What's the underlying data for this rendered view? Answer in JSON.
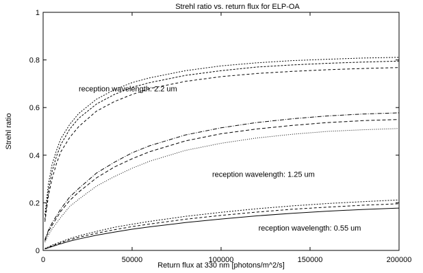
{
  "chart_data": {
    "type": "line",
    "title": "Strehl ratio vs. return flux for ELP-OA",
    "xlabel": "Return flux at 330 nm [photons/m^2/s]",
    "ylabel": "Strehl ratio",
    "xlim": [
      0,
      200000
    ],
    "ylim": [
      0,
      1
    ],
    "x_ticks": [
      "0",
      "50000",
      "100000",
      "150000",
      "200000"
    ],
    "y_ticks": [
      "0",
      "0.2",
      "0.4",
      "0.6",
      "0.8",
      "1"
    ],
    "grid": false,
    "legend": "none",
    "x": [
      1000,
      3000,
      5000,
      7500,
      10000,
      15000,
      20000,
      30000,
      40000,
      50000,
      60000,
      80000,
      100000,
      120000,
      140000,
      160000,
      180000,
      200000
    ],
    "series": [
      {
        "group": "2.2",
        "dash": "2,2",
        "values": [
          0.15,
          0.28,
          0.36,
          0.42,
          0.47,
          0.53,
          0.575,
          0.635,
          0.675,
          0.705,
          0.725,
          0.755,
          0.775,
          0.788,
          0.797,
          0.803,
          0.808,
          0.811
        ]
      },
      {
        "group": "2.2",
        "dash": "3,2",
        "values": [
          0.13,
          0.25,
          0.33,
          0.395,
          0.445,
          0.51,
          0.555,
          0.615,
          0.655,
          0.685,
          0.705,
          0.735,
          0.755,
          0.77,
          0.779,
          0.786,
          0.791,
          0.795
        ]
      },
      {
        "group": "2.2",
        "dash": "4,3",
        "values": [
          0.12,
          0.23,
          0.3,
          0.365,
          0.415,
          0.475,
          0.52,
          0.585,
          0.625,
          0.655,
          0.68,
          0.71,
          0.73,
          0.743,
          0.752,
          0.759,
          0.764,
          0.768
        ]
      },
      {
        "group": "1.25",
        "dash": "6,2,1,2",
        "values": [
          0.045,
          0.085,
          0.115,
          0.145,
          0.175,
          0.225,
          0.26,
          0.325,
          0.37,
          0.41,
          0.44,
          0.485,
          0.515,
          0.537,
          0.553,
          0.565,
          0.573,
          0.578
        ]
      },
      {
        "group": "1.25",
        "dash": "5,3",
        "values": [
          0.04,
          0.08,
          0.105,
          0.135,
          0.165,
          0.21,
          0.245,
          0.305,
          0.35,
          0.385,
          0.415,
          0.46,
          0.49,
          0.51,
          0.525,
          0.537,
          0.545,
          0.55
        ]
      },
      {
        "group": "1.25",
        "dash": "1,2",
        "values": [
          0.035,
          0.065,
          0.09,
          0.115,
          0.14,
          0.185,
          0.215,
          0.27,
          0.31,
          0.345,
          0.375,
          0.42,
          0.45,
          0.472,
          0.488,
          0.5,
          0.507,
          0.512
        ]
      },
      {
        "group": "0.55",
        "dash": "2,2",
        "values": [
          0.008,
          0.015,
          0.022,
          0.029,
          0.036,
          0.05,
          0.061,
          0.08,
          0.097,
          0.11,
          0.122,
          0.143,
          0.16,
          0.175,
          0.187,
          0.197,
          0.205,
          0.212
        ]
      },
      {
        "group": "0.55",
        "dash": "4,3",
        "values": [
          0.007,
          0.013,
          0.019,
          0.026,
          0.032,
          0.045,
          0.055,
          0.072,
          0.087,
          0.1,
          0.111,
          0.131,
          0.147,
          0.161,
          0.173,
          0.182,
          0.19,
          0.196
        ]
      },
      {
        "group": "0.55",
        "dash": "",
        "values": [
          0.006,
          0.011,
          0.016,
          0.022,
          0.028,
          0.039,
          0.048,
          0.064,
          0.077,
          0.089,
          0.099,
          0.117,
          0.132,
          0.145,
          0.156,
          0.165,
          0.172,
          0.178
        ]
      }
    ],
    "annotations": [
      {
        "text": "reception wavelength: 2.2 um",
        "x": 20000,
        "y": 0.68
      },
      {
        "text": "reception wavelength: 1.25 um",
        "x": 95000,
        "y": 0.32
      },
      {
        "text": "reception wavelength: 0.55 um",
        "x": 121000,
        "y": 0.095
      }
    ]
  }
}
